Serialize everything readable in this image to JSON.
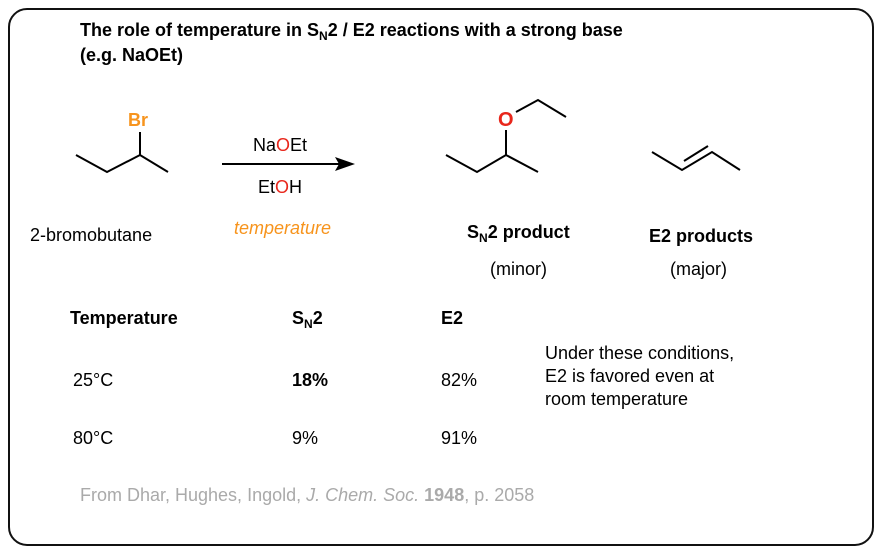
{
  "title": {
    "line1": [
      "The role of temperature in S",
      "N",
      "2 / E2 reactions with a strong base"
    ],
    "line2": "(e.g. NaOEt)"
  },
  "reactant": {
    "atom": "Br",
    "name": "2-bromobutane"
  },
  "conditions": {
    "reagent": [
      "Na",
      "O",
      "Et"
    ],
    "solvent": [
      "Et",
      "O",
      "H"
    ],
    "variable": "temperature"
  },
  "sn2_product": {
    "atom": "O",
    "label": [
      "S",
      "N",
      "2 product"
    ],
    "note": "(minor)"
  },
  "e2_product": {
    "label": "E2 products",
    "note": "(major)"
  },
  "table": {
    "header": [
      "Temperature",
      [
        "S",
        "N",
        "2"
      ],
      "E2"
    ],
    "rows": [
      [
        "25°C",
        "18%",
        "82%"
      ],
      [
        "80°C",
        "9%",
        "91%"
      ]
    ]
  },
  "comment": [
    "Under these conditions,",
    "E2 is favored even at",
    "room temperature"
  ],
  "citation": [
    "From Dhar, Hughes, Ingold, ",
    "J. Chem. Soc.",
    " 1948",
    ", p. 2058"
  ]
}
